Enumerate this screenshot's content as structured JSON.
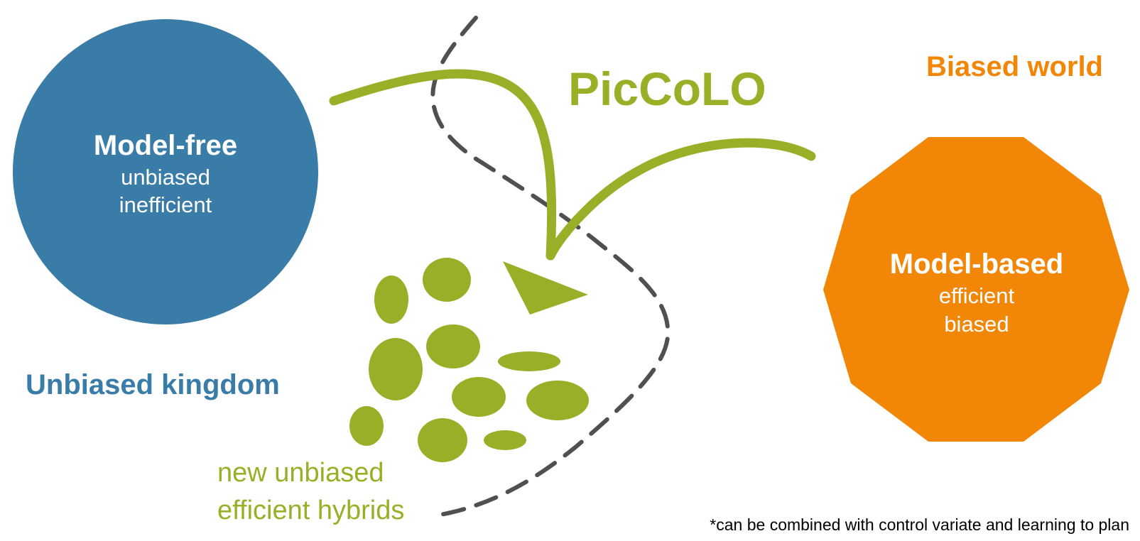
{
  "colors": {
    "blue": "#3a7ca8",
    "orange": "#f28707",
    "green": "#9aaf28",
    "dashed": "#505050",
    "white": "#ffffff",
    "black": "#000000"
  },
  "model_free": {
    "title": "Model-free",
    "line1": "unbiased",
    "line2": "inefficient"
  },
  "model_based": {
    "title": "Model-based",
    "line1": "efficient",
    "line2": "biased"
  },
  "regions": {
    "unbiased": "Unbiased kingdom",
    "biased": "Biased world"
  },
  "method": "PicCoLO",
  "hybrids": {
    "line1": "new unbiased",
    "line2": "efficient hybrids"
  },
  "footnote": "*can be combined with control variate and learning to plan"
}
